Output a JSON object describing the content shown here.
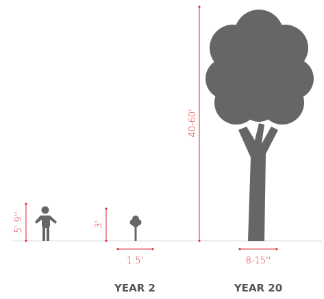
{
  "person": {
    "height_label": "5' 9''"
  },
  "year_2": {
    "height_label": "3'",
    "spread_label": "1.5'",
    "caption": "YEAR 2"
  },
  "year_20": {
    "height_label": "40-60'",
    "spread_label": "8-15''",
    "caption": "YEAR 20"
  }
}
